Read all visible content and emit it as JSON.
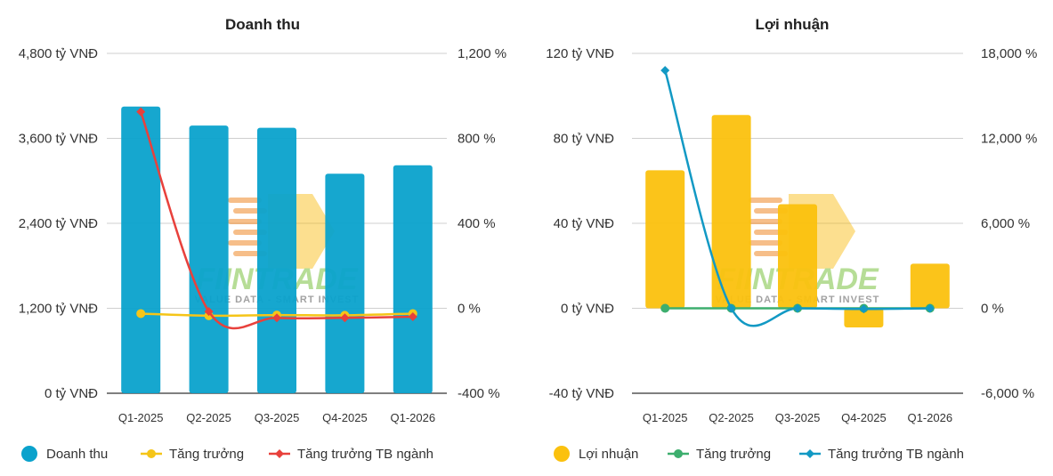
{
  "charts": [
    {
      "id": "revenue",
      "title": "Doanh thu",
      "colors": {
        "bar": "#0aa2cc",
        "growth": "#f5c518",
        "industry": "#e8413c"
      },
      "chart_data": {
        "type": "bar",
        "categories": [
          "Q1-2025",
          "Q2-2025",
          "Q3-2025",
          "Q4-2025",
          "Q1-2026"
        ],
        "series": [
          {
            "name": "Doanh thu",
            "kind": "bar",
            "axis": "left",
            "values": [
              4050,
              3780,
              3750,
              3100,
              3220
            ]
          },
          {
            "name": "Tăng trưởng",
            "kind": "line",
            "axis": "right",
            "values": [
              -25,
              -35,
              -32,
              -33,
              -25
            ]
          },
          {
            "name": "Tăng trưởng TB ngành",
            "kind": "line",
            "axis": "right",
            "values": [
              925,
              -15,
              -45,
              -45,
              -40
            ]
          }
        ],
        "left_axis": {
          "ylim": [
            0,
            4800
          ],
          "ticks": [
            0,
            1200,
            2400,
            3600,
            4800
          ],
          "tick_labels": [
            "0 tỷ VNĐ",
            "1,200 tỷ VNĐ",
            "2,400 tỷ VNĐ",
            "3,600 tỷ VNĐ",
            "4,800 tỷ VNĐ"
          ]
        },
        "right_axis": {
          "ylim": [
            -400,
            1200
          ],
          "ticks": [
            -400,
            0,
            400,
            800,
            1200
          ],
          "tick_labels": [
            "-400 %",
            "0 %",
            "400 %",
            "800 %",
            "1,200 %"
          ]
        },
        "grid": true,
        "legend": "bottom"
      }
    },
    {
      "id": "profit",
      "title": "Lợi nhuận",
      "colors": {
        "bar": "#fbc10e",
        "growth": "#3dae6e",
        "industry": "#1299c4"
      },
      "chart_data": {
        "type": "bar",
        "categories": [
          "Q1-2025",
          "Q2-2025",
          "Q3-2025",
          "Q4-2025",
          "Q1-2026"
        ],
        "series": [
          {
            "name": "Lợi nhuận",
            "kind": "bar",
            "axis": "left",
            "values": [
              65,
              91,
              49,
              -9,
              21
            ]
          },
          {
            "name": "Tăng trưởng",
            "kind": "line",
            "axis": "right",
            "values": [
              0,
              0,
              0,
              0,
              0
            ]
          },
          {
            "name": "Tăng trưởng TB ngành",
            "kind": "line",
            "axis": "right",
            "values": [
              16800,
              0,
              0,
              -50,
              0
            ]
          }
        ],
        "left_axis": {
          "ylim": [
            -40,
            120
          ],
          "ticks": [
            -40,
            0,
            40,
            80,
            120
          ],
          "tick_labels": [
            "-40 tỷ VNĐ",
            "0 tỷ VNĐ",
            "40 tỷ VNĐ",
            "80 tỷ VNĐ",
            "120 tỷ VNĐ"
          ]
        },
        "right_axis": {
          "ylim": [
            -6000,
            18000
          ],
          "ticks": [
            -6000,
            0,
            6000,
            12000,
            18000
          ],
          "tick_labels": [
            "-6,000 %",
            "0 %",
            "6,000 %",
            "12,000 %",
            "18,000 %"
          ]
        },
        "grid": true,
        "legend": "bottom"
      }
    }
  ],
  "watermark": {
    "text": "FIINTRADE",
    "subtext": "VALUE DATA - SMART INVEST"
  }
}
